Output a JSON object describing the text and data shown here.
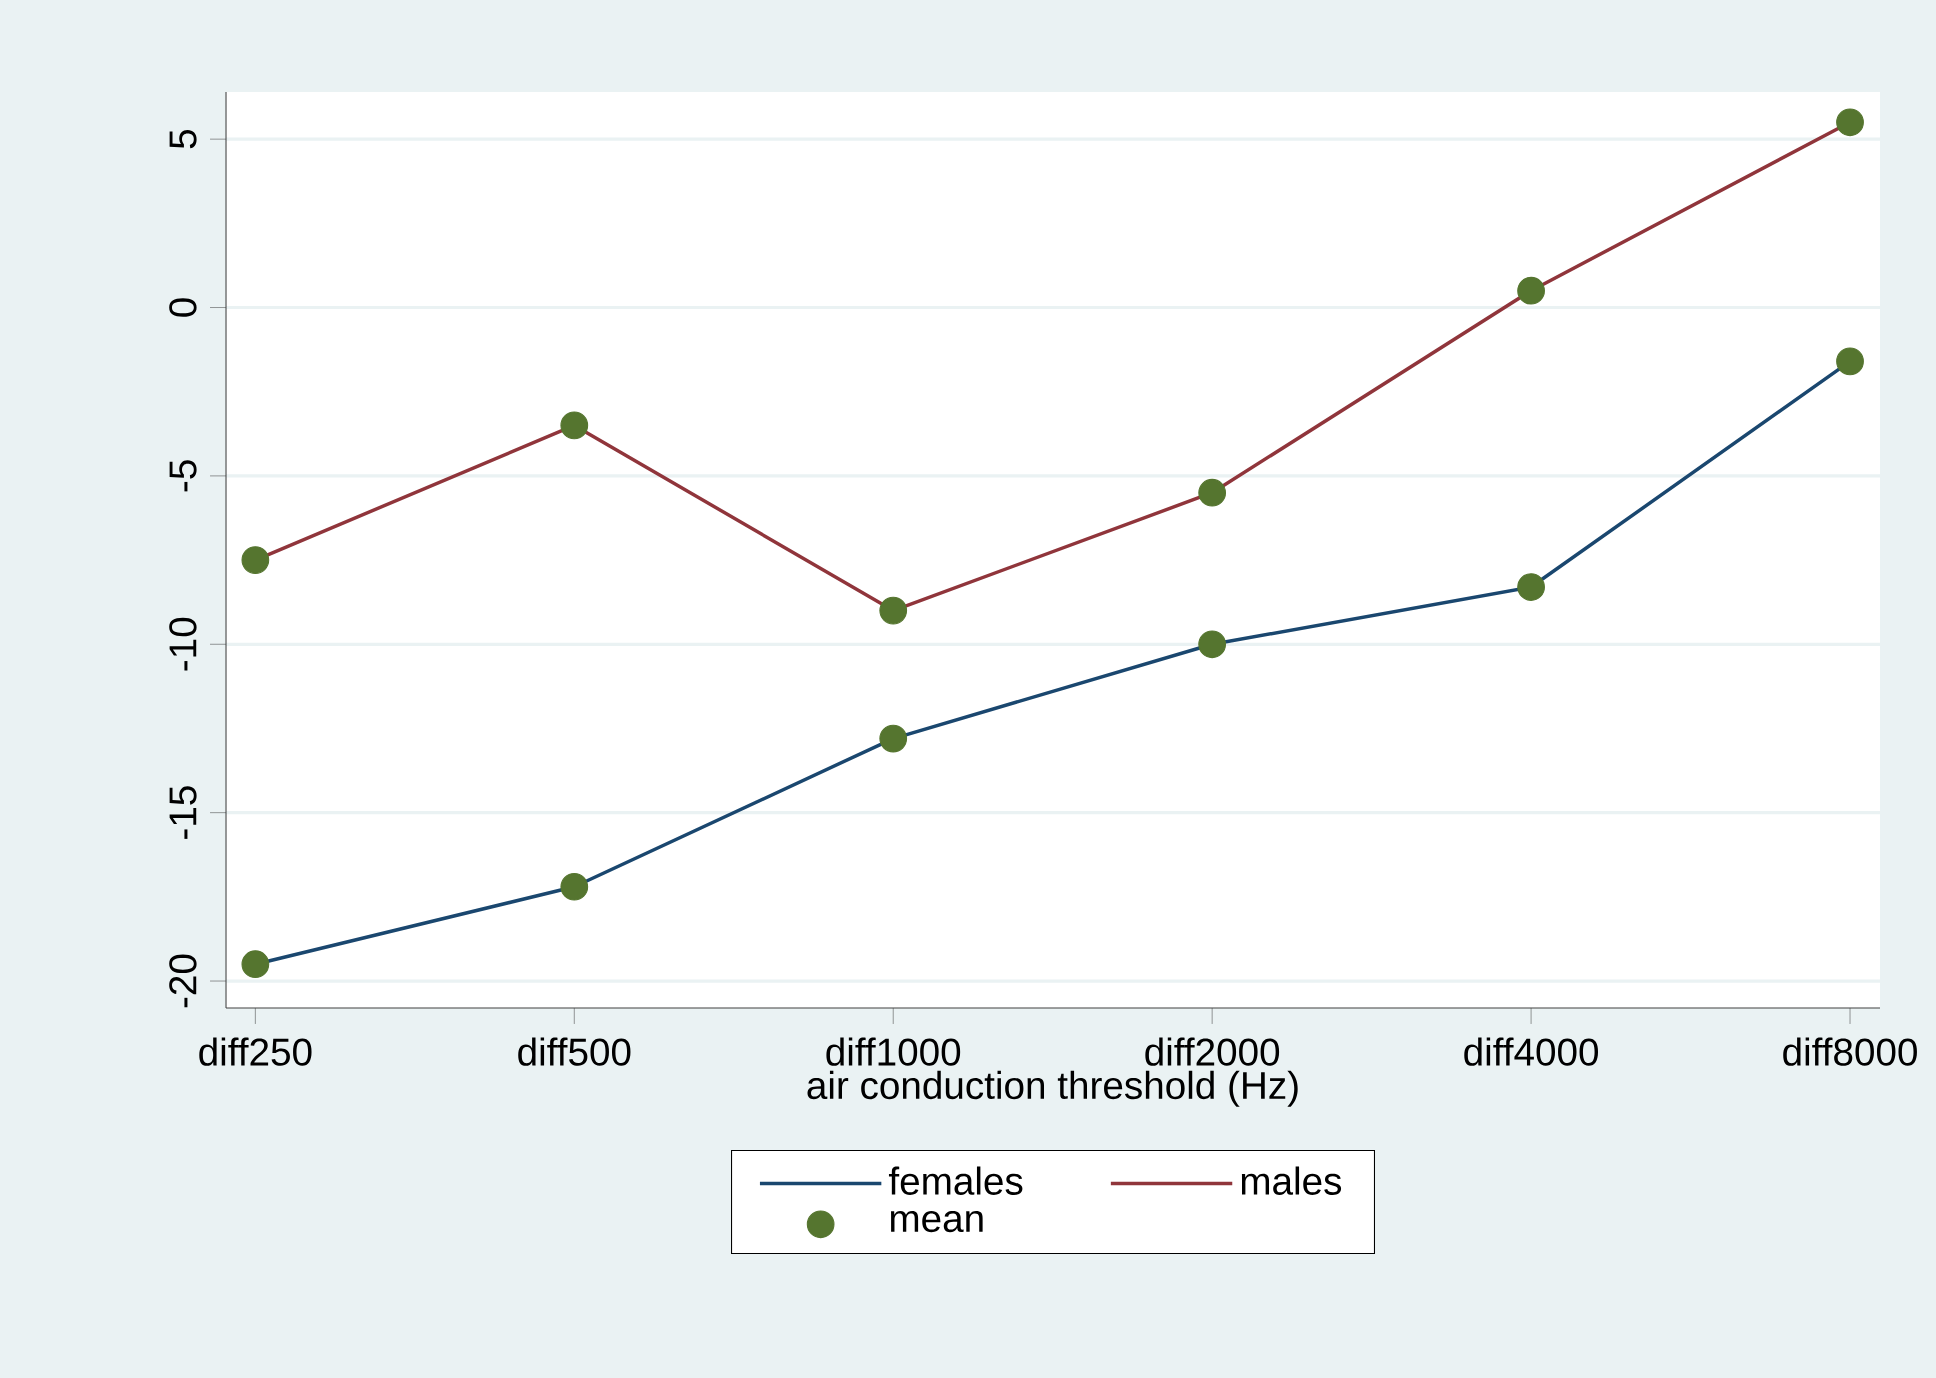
{
  "chart_data": {
    "type": "line",
    "xlabel": "air conduction threshold (Hz)",
    "categories": [
      "diff250",
      "diff500",
      "diff1000",
      "diff2000",
      "diff4000",
      "diff8000"
    ],
    "ylim": [
      -20.8,
      6.4
    ],
    "yticks": [
      -20,
      -15,
      -10,
      -5,
      0,
      5
    ],
    "grid": "y",
    "legend": "bottom",
    "series": [
      {
        "name": "females",
        "color": "#1a476f",
        "values": [
          -19.5,
          -17.2,
          -12.8,
          -10.0,
          -8.3,
          -1.6
        ]
      },
      {
        "name": "males",
        "color": "#90353b",
        "values": [
          -7.5,
          -3.5,
          -9.0,
          -5.5,
          0.5,
          5.5
        ]
      },
      {
        "name": "mean",
        "type": "scatter",
        "marker": "circle",
        "color": "#55752f",
        "x": [
          "diff250",
          "diff500",
          "diff1000",
          "diff2000",
          "diff4000",
          "diff8000",
          "diff250",
          "diff500",
          "diff1000",
          "diff2000",
          "diff4000",
          "diff8000"
        ],
        "values": [
          -19.5,
          -17.2,
          -12.8,
          -10.0,
          -8.3,
          -1.6,
          -7.5,
          -3.5,
          -9.0,
          -5.5,
          0.5,
          5.5
        ]
      }
    ]
  }
}
